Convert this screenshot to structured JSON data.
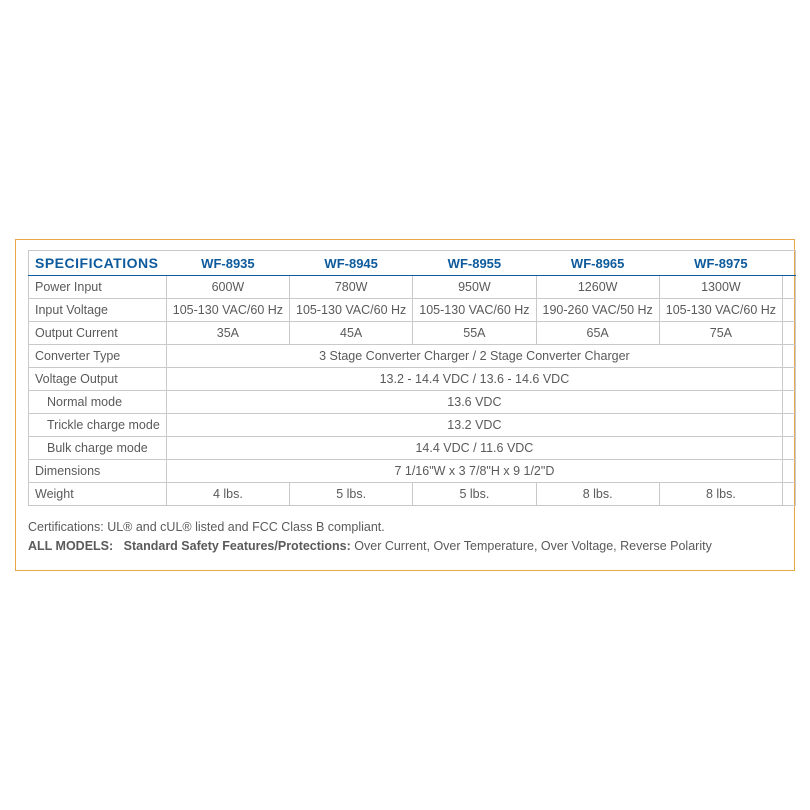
{
  "table": {
    "title": "SPECIFICATIONS",
    "models": [
      "WF-8935",
      "WF-8945",
      "WF-8955",
      "WF-8965",
      "WF-8975"
    ],
    "title_color": "#0d5a9c",
    "border_color": "#c9c9c9",
    "frame_border_color": "#e8a84a",
    "text_color": "#5a5a5a",
    "font_size_body": 12.5,
    "font_size_header": 14,
    "rows": [
      {
        "label": "Power Input",
        "vals": [
          "600W",
          "780W",
          "950W",
          "1260W",
          "1300W"
        ]
      },
      {
        "label": "Input Voltage",
        "vals": [
          "105-130 VAC/60 Hz",
          "105-130 VAC/60 Hz",
          "105-130 VAC/60 Hz",
          "190-260 VAC/50 Hz",
          "105-130 VAC/60 Hz"
        ]
      },
      {
        "label": "Output Current",
        "vals": [
          "35A",
          "45A",
          "55A",
          "65A",
          "75A"
        ]
      },
      {
        "label": "Converter Type",
        "span": "3 Stage Converter Charger / 2 Stage Converter Charger"
      },
      {
        "label": "Voltage Output",
        "span": "13.2 - 14.4 VDC / 13.6 - 14.6 VDC"
      },
      {
        "label": "Normal mode",
        "indent": true,
        "span": "13.6 VDC"
      },
      {
        "label": "Trickle charge mode",
        "indent": true,
        "span": "13.2 VDC"
      },
      {
        "label": "Bulk charge mode",
        "indent": true,
        "span": "14.4 VDC / 11.6 VDC"
      },
      {
        "label": "Dimensions",
        "span": "7 1/16\"W x 3 7/8\"H x 9 1/2\"D"
      },
      {
        "label": "Weight",
        "vals": [
          "4 lbs.",
          "5 lbs.",
          "5 lbs.",
          "8 lbs.",
          "8 lbs."
        ]
      }
    ]
  },
  "footer": {
    "cert": "Certifications: UL® and cUL® listed and FCC Class B compliant.",
    "all_models_label": "ALL MODELS:",
    "safety_label": "Standard Safety Features/Protections:",
    "safety_text": " Over Current, Over Temperature, Over Voltage, Reverse Polarity"
  }
}
